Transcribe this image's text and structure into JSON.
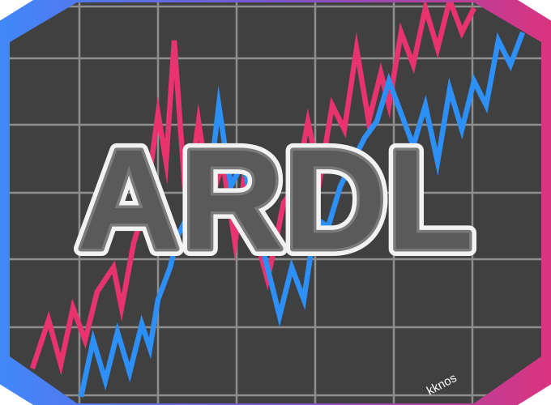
{
  "logo": {
    "title": "ARDL",
    "author": "kknos",
    "colors": {
      "background": "#404040",
      "grid": "#8e8e8e",
      "series_pink": "#e8336f",
      "series_blue": "#2d8ff8",
      "border_start": "#3d8bfd",
      "border_mid": "#7b55cf",
      "border_end": "#e0327a",
      "title_fill": "#5a5a5a",
      "title_outline": "#f2f2f2"
    }
  }
}
